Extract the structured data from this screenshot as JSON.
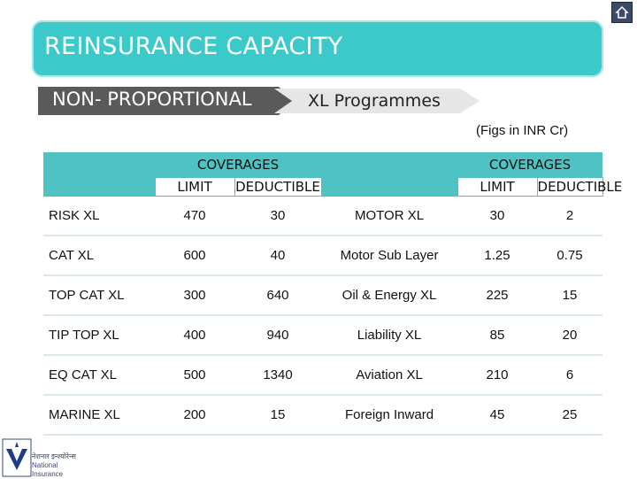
{
  "title": "REINSURANCE CAPACITY",
  "breadcrumb": {
    "step1": "NON- PROPORTIONAL",
    "step2": "XL Programmes"
  },
  "note": "(Figs in INR Cr)",
  "table": {
    "group_header_left": "COVERAGES",
    "group_header_right": "COVERAGES",
    "col_limit": "LIMIT",
    "col_deductible": "DEDUCTIBLE",
    "rows": [
      {
        "left_name": "RISK XL",
        "left_limit": "470",
        "left_deductible": "30",
        "right_name": "MOTOR XL",
        "right_limit": "30",
        "right_deductible": "2"
      },
      {
        "left_name": "CAT XL",
        "left_limit": "600",
        "left_deductible": "40",
        "right_name": "Motor Sub Layer",
        "right_limit": "1.25",
        "right_deductible": "0.75"
      },
      {
        "left_name": "TOP CAT XL",
        "left_limit": "300",
        "left_deductible": "640",
        "right_name": "Oil & Energy XL",
        "right_limit": "225",
        "right_deductible": "15"
      },
      {
        "left_name": "TIP TOP XL",
        "left_limit": "400",
        "left_deductible": "940",
        "right_name": "Liability XL",
        "right_limit": "85",
        "right_deductible": "20"
      },
      {
        "left_name": "EQ CAT XL",
        "left_limit": "500",
        "left_deductible": "1340",
        "right_name": "Aviation XL",
        "right_limit": "210",
        "right_deductible": "6"
      },
      {
        "left_name": "MARINE XL",
        "left_limit": "200",
        "left_deductible": "15",
        "right_name": "Foreign Inward",
        "right_limit": "45",
        "right_deductible": "25"
      }
    ]
  },
  "logo": {
    "line1": "नेशनल इन्श्योरेन्स",
    "line2": "National Insurance"
  },
  "colors": {
    "accent": "#3bc9c9",
    "table_header": "#4fc3c3",
    "chevron_dark": "#5a5a5a",
    "chevron_light": "#e6e6e6"
  },
  "icons": {
    "home": "home-icon",
    "logo": "national-insurance-logo-icon"
  }
}
